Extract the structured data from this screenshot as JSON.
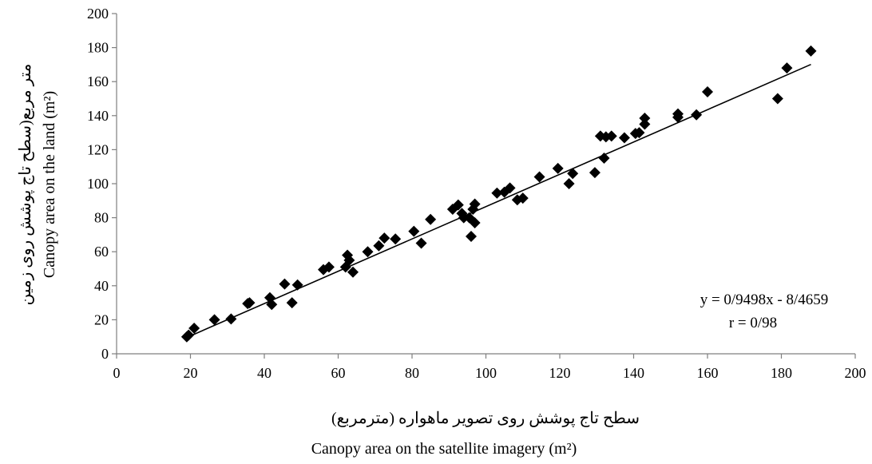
{
  "chart_data": {
    "type": "scatter",
    "xlabel": "Canopy area on the satellite imagery (m²)",
    "xlabel_fa": "سطح تاج پوشش روی تصویر ماهواره (مترمربع)",
    "ylabel": "Canopy area on the land (m²)",
    "ylabel_fa": "متر مربع(سطح تاج پوشش روی زمین",
    "xlim": [
      0,
      200
    ],
    "ylim": [
      0,
      200
    ],
    "xticks": [
      0,
      20,
      40,
      60,
      80,
      100,
      120,
      140,
      160,
      180,
      200
    ],
    "yticks": [
      0,
      20,
      40,
      60,
      80,
      100,
      120,
      140,
      160,
      180,
      200
    ],
    "grid": false,
    "marker": "diamond",
    "marker_color": "#000000",
    "trendline": {
      "type": "linear",
      "slope": 0.9498,
      "intercept": -8.4659,
      "x_range": [
        19,
        188
      ]
    },
    "annotations": {
      "equation": "y = 0/9498x - 8/4659",
      "r": "r = 0/98"
    },
    "points": [
      [
        19,
        10
      ],
      [
        19.5,
        11
      ],
      [
        21,
        15
      ],
      [
        26.5,
        20
      ],
      [
        31,
        20.5
      ],
      [
        35.5,
        29.5
      ],
      [
        36,
        30
      ],
      [
        41.5,
        33
      ],
      [
        42,
        29
      ],
      [
        45.5,
        41
      ],
      [
        47.5,
        30
      ],
      [
        49,
        40.5
      ],
      [
        56,
        49.5
      ],
      [
        57.5,
        51
      ],
      [
        62,
        51
      ],
      [
        62.5,
        58
      ],
      [
        63,
        55
      ],
      [
        64,
        48
      ],
      [
        68,
        60
      ],
      [
        71,
        63.5
      ],
      [
        72.5,
        68
      ],
      [
        75.5,
        67.5
      ],
      [
        80.5,
        72
      ],
      [
        82.5,
        65
      ],
      [
        85,
        79
      ],
      [
        91,
        85
      ],
      [
        92.5,
        87.5
      ],
      [
        93.5,
        82.5
      ],
      [
        94,
        80
      ],
      [
        95.5,
        80
      ],
      [
        96,
        69
      ],
      [
        96.5,
        85
      ],
      [
        97,
        77
      ],
      [
        97,
        88
      ],
      [
        103,
        94.5
      ],
      [
        105,
        95
      ],
      [
        106.5,
        97.5
      ],
      [
        108.5,
        90.5
      ],
      [
        110,
        91.5
      ],
      [
        114.5,
        104
      ],
      [
        119.5,
        109
      ],
      [
        122.5,
        100
      ],
      [
        123.5,
        106
      ],
      [
        129.5,
        106.5
      ],
      [
        131,
        128
      ],
      [
        132,
        115
      ],
      [
        132.5,
        127.5
      ],
      [
        134,
        128
      ],
      [
        137.5,
        127
      ],
      [
        140.5,
        129.5
      ],
      [
        141.5,
        130
      ],
      [
        143,
        135
      ],
      [
        143,
        138.5
      ],
      [
        152,
        139
      ],
      [
        152,
        141
      ],
      [
        157,
        140.5
      ],
      [
        160,
        154
      ],
      [
        179,
        150
      ],
      [
        181.5,
        168
      ],
      [
        188,
        178
      ]
    ]
  }
}
